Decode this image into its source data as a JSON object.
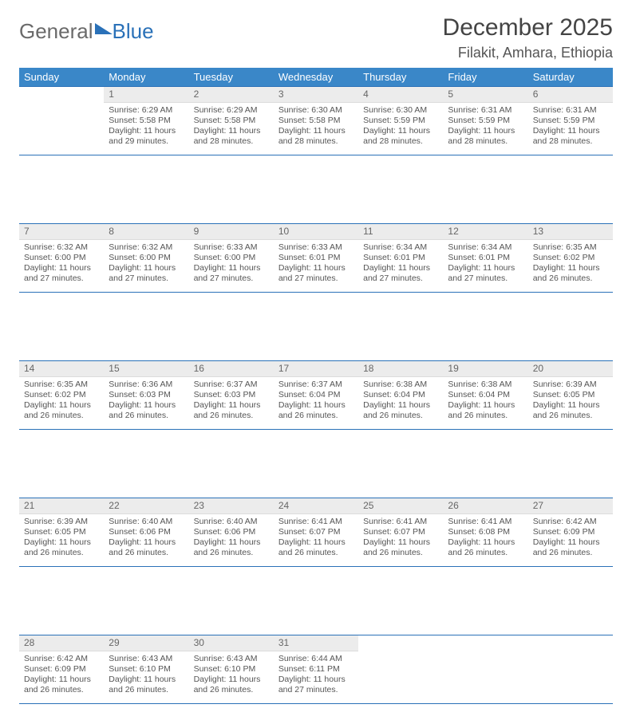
{
  "logo": {
    "text1": "General",
    "text2": "Blue"
  },
  "header": {
    "month_title": "December 2025",
    "location": "Filakit, Amhara, Ethiopia"
  },
  "style": {
    "header_bg": "#3a87c8",
    "header_text": "#ffffff",
    "cell_border": "#2a71b8",
    "daynum_bg": "#ececec",
    "body_text": "#555555",
    "page_bg": "#ffffff"
  },
  "day_headers": [
    "Sunday",
    "Monday",
    "Tuesday",
    "Wednesday",
    "Thursday",
    "Friday",
    "Saturday"
  ],
  "weeks": [
    [
      {
        "n": "",
        "lines": [
          "",
          "",
          "",
          ""
        ]
      },
      {
        "n": "1",
        "lines": [
          "Sunrise: 6:29 AM",
          "Sunset: 5:58 PM",
          "Daylight: 11 hours",
          "and 29 minutes."
        ]
      },
      {
        "n": "2",
        "lines": [
          "Sunrise: 6:29 AM",
          "Sunset: 5:58 PM",
          "Daylight: 11 hours",
          "and 28 minutes."
        ]
      },
      {
        "n": "3",
        "lines": [
          "Sunrise: 6:30 AM",
          "Sunset: 5:58 PM",
          "Daylight: 11 hours",
          "and 28 minutes."
        ]
      },
      {
        "n": "4",
        "lines": [
          "Sunrise: 6:30 AM",
          "Sunset: 5:59 PM",
          "Daylight: 11 hours",
          "and 28 minutes."
        ]
      },
      {
        "n": "5",
        "lines": [
          "Sunrise: 6:31 AM",
          "Sunset: 5:59 PM",
          "Daylight: 11 hours",
          "and 28 minutes."
        ]
      },
      {
        "n": "6",
        "lines": [
          "Sunrise: 6:31 AM",
          "Sunset: 5:59 PM",
          "Daylight: 11 hours",
          "and 28 minutes."
        ]
      }
    ],
    [
      {
        "n": "7",
        "lines": [
          "Sunrise: 6:32 AM",
          "Sunset: 6:00 PM",
          "Daylight: 11 hours",
          "and 27 minutes."
        ]
      },
      {
        "n": "8",
        "lines": [
          "Sunrise: 6:32 AM",
          "Sunset: 6:00 PM",
          "Daylight: 11 hours",
          "and 27 minutes."
        ]
      },
      {
        "n": "9",
        "lines": [
          "Sunrise: 6:33 AM",
          "Sunset: 6:00 PM",
          "Daylight: 11 hours",
          "and 27 minutes."
        ]
      },
      {
        "n": "10",
        "lines": [
          "Sunrise: 6:33 AM",
          "Sunset: 6:01 PM",
          "Daylight: 11 hours",
          "and 27 minutes."
        ]
      },
      {
        "n": "11",
        "lines": [
          "Sunrise: 6:34 AM",
          "Sunset: 6:01 PM",
          "Daylight: 11 hours",
          "and 27 minutes."
        ]
      },
      {
        "n": "12",
        "lines": [
          "Sunrise: 6:34 AM",
          "Sunset: 6:01 PM",
          "Daylight: 11 hours",
          "and 27 minutes."
        ]
      },
      {
        "n": "13",
        "lines": [
          "Sunrise: 6:35 AM",
          "Sunset: 6:02 PM",
          "Daylight: 11 hours",
          "and 26 minutes."
        ]
      }
    ],
    [
      {
        "n": "14",
        "lines": [
          "Sunrise: 6:35 AM",
          "Sunset: 6:02 PM",
          "Daylight: 11 hours",
          "and 26 minutes."
        ]
      },
      {
        "n": "15",
        "lines": [
          "Sunrise: 6:36 AM",
          "Sunset: 6:03 PM",
          "Daylight: 11 hours",
          "and 26 minutes."
        ]
      },
      {
        "n": "16",
        "lines": [
          "Sunrise: 6:37 AM",
          "Sunset: 6:03 PM",
          "Daylight: 11 hours",
          "and 26 minutes."
        ]
      },
      {
        "n": "17",
        "lines": [
          "Sunrise: 6:37 AM",
          "Sunset: 6:04 PM",
          "Daylight: 11 hours",
          "and 26 minutes."
        ]
      },
      {
        "n": "18",
        "lines": [
          "Sunrise: 6:38 AM",
          "Sunset: 6:04 PM",
          "Daylight: 11 hours",
          "and 26 minutes."
        ]
      },
      {
        "n": "19",
        "lines": [
          "Sunrise: 6:38 AM",
          "Sunset: 6:04 PM",
          "Daylight: 11 hours",
          "and 26 minutes."
        ]
      },
      {
        "n": "20",
        "lines": [
          "Sunrise: 6:39 AM",
          "Sunset: 6:05 PM",
          "Daylight: 11 hours",
          "and 26 minutes."
        ]
      }
    ],
    [
      {
        "n": "21",
        "lines": [
          "Sunrise: 6:39 AM",
          "Sunset: 6:05 PM",
          "Daylight: 11 hours",
          "and 26 minutes."
        ]
      },
      {
        "n": "22",
        "lines": [
          "Sunrise: 6:40 AM",
          "Sunset: 6:06 PM",
          "Daylight: 11 hours",
          "and 26 minutes."
        ]
      },
      {
        "n": "23",
        "lines": [
          "Sunrise: 6:40 AM",
          "Sunset: 6:06 PM",
          "Daylight: 11 hours",
          "and 26 minutes."
        ]
      },
      {
        "n": "24",
        "lines": [
          "Sunrise: 6:41 AM",
          "Sunset: 6:07 PM",
          "Daylight: 11 hours",
          "and 26 minutes."
        ]
      },
      {
        "n": "25",
        "lines": [
          "Sunrise: 6:41 AM",
          "Sunset: 6:07 PM",
          "Daylight: 11 hours",
          "and 26 minutes."
        ]
      },
      {
        "n": "26",
        "lines": [
          "Sunrise: 6:41 AM",
          "Sunset: 6:08 PM",
          "Daylight: 11 hours",
          "and 26 minutes."
        ]
      },
      {
        "n": "27",
        "lines": [
          "Sunrise: 6:42 AM",
          "Sunset: 6:09 PM",
          "Daylight: 11 hours",
          "and 26 minutes."
        ]
      }
    ],
    [
      {
        "n": "28",
        "lines": [
          "Sunrise: 6:42 AM",
          "Sunset: 6:09 PM",
          "Daylight: 11 hours",
          "and 26 minutes."
        ]
      },
      {
        "n": "29",
        "lines": [
          "Sunrise: 6:43 AM",
          "Sunset: 6:10 PM",
          "Daylight: 11 hours",
          "and 26 minutes."
        ]
      },
      {
        "n": "30",
        "lines": [
          "Sunrise: 6:43 AM",
          "Sunset: 6:10 PM",
          "Daylight: 11 hours",
          "and 26 minutes."
        ]
      },
      {
        "n": "31",
        "lines": [
          "Sunrise: 6:44 AM",
          "Sunset: 6:11 PM",
          "Daylight: 11 hours",
          "and 27 minutes."
        ]
      },
      {
        "n": "",
        "lines": [
          "",
          "",
          "",
          ""
        ]
      },
      {
        "n": "",
        "lines": [
          "",
          "",
          "",
          ""
        ]
      },
      {
        "n": "",
        "lines": [
          "",
          "",
          "",
          ""
        ]
      }
    ]
  ]
}
